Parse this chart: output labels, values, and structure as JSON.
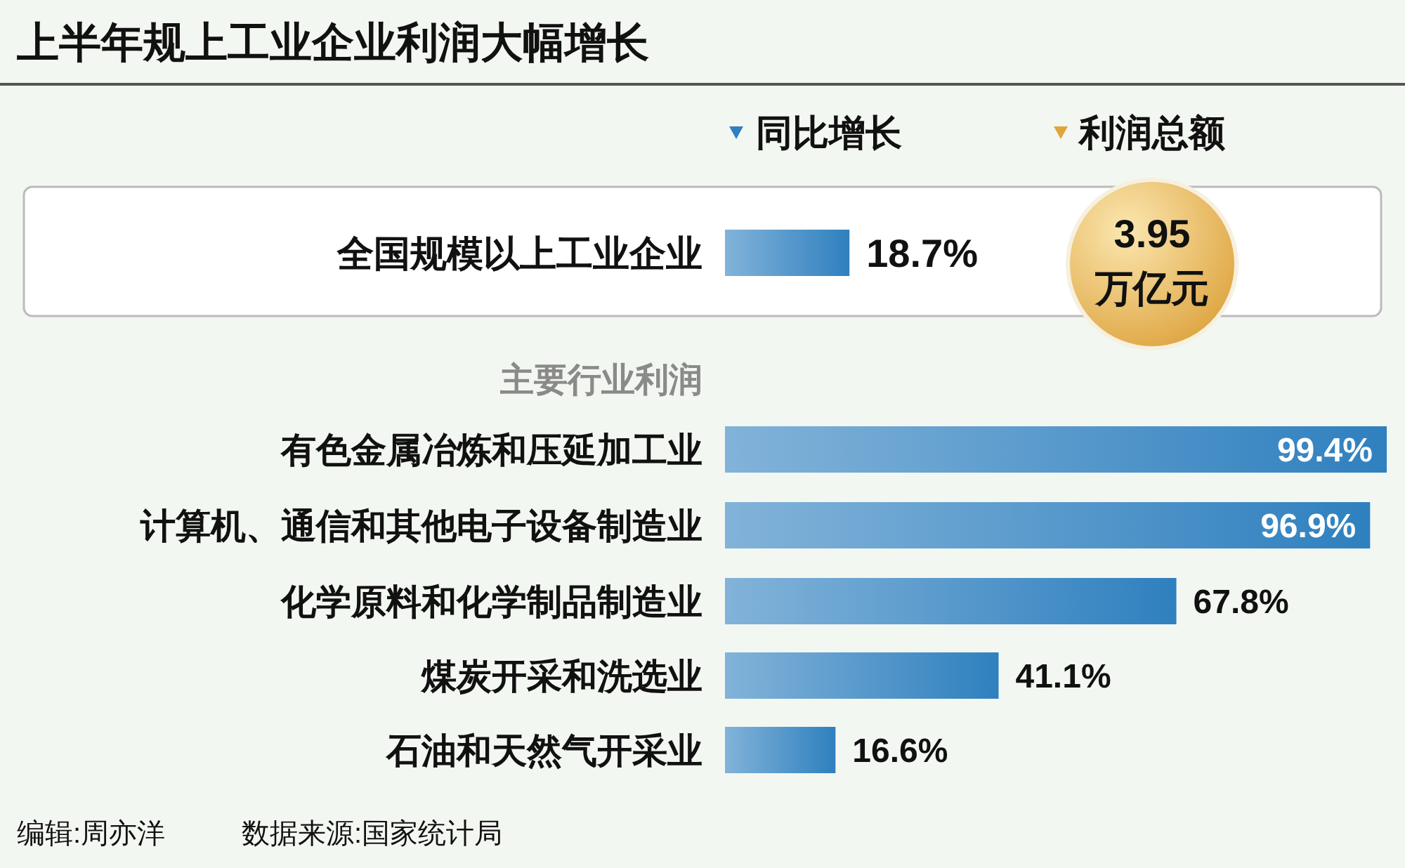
{
  "chart_data": {
    "type": "bar",
    "orientation": "horizontal",
    "title": "上半年规上工业企业利润大幅增长",
    "categories": [
      "全国规模以上工业企业",
      "有色金属冶炼和压延加工业",
      "计算机、通信和其他电子设备制造业",
      "化学原料和化学制品制造业",
      "煤炭开采和洗选业",
      "石油和天然气开采业"
    ],
    "series": [
      {
        "name": "同比增长",
        "color": "#2f80bf",
        "values": [
          18.7,
          99.4,
          96.9,
          67.8,
          41.1,
          16.6
        ],
        "value_labels": [
          "18.7%",
          "99.4%",
          "96.9%",
          "67.8%",
          "41.1%",
          "16.6%"
        ]
      }
    ],
    "legend": "top",
    "annotations": [
      "主要行业利润",
      "利润总额",
      "3.95",
      "万亿元",
      "编辑:周亦洋",
      "数据来源:国家统计局"
    ]
  }
}
